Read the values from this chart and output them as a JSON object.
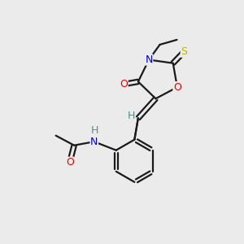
{
  "background_color": "#ebebeb",
  "bond_color": "#1a1a1a",
  "atom_colors": {
    "O": "#e60000",
    "N": "#0000cc",
    "S": "#b8b800",
    "H": "#4a9090",
    "C": "#1a1a1a"
  },
  "figsize": [
    3.0,
    3.0
  ],
  "dpi": 100
}
